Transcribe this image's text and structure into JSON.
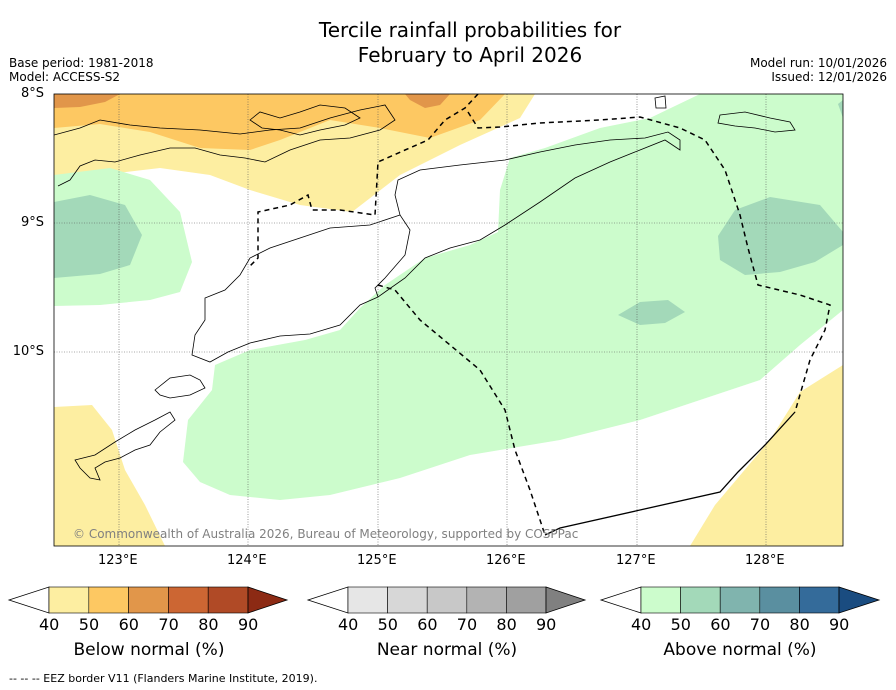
{
  "title_line1": "Tercile rainfall probabilities for",
  "title_line2": "February to April 2026",
  "base_period": "Base period: 1981-2018",
  "model": "Model: ACCESS-S2",
  "model_run": "Model run: 10/01/2026",
  "issued": "Issued: 12/01/2026",
  "latitudes": [
    "8°S",
    "9°S",
    "10°S"
  ],
  "longitudes": [
    "123°E",
    "124°E",
    "125°E",
    "126°E",
    "127°E",
    "128°E"
  ],
  "copyright": "© Commonwealth of Australia 2026, Bureau of Meteorology, supported by COSPPac",
  "colorbars": [
    {
      "label": "Below normal (%)",
      "ticks": [
        "40",
        "50",
        "60",
        "70",
        "80",
        "90"
      ],
      "colors": [
        "#ffffff",
        "#fdeea1",
        "#fdc862",
        "#e1964a",
        "#cc6633",
        "#b04a26",
        "#8c2a14"
      ]
    },
    {
      "label": "Near normal (%)",
      "ticks": [
        "40",
        "50",
        "60",
        "70",
        "80",
        "90"
      ],
      "colors": [
        "#ffffff",
        "#e6e6e6",
        "#d7d7d7",
        "#c8c8c8",
        "#b3b3b3",
        "#a0a0a0",
        "#808080"
      ]
    },
    {
      "label": "Above normal (%)",
      "ticks": [
        "40",
        "50",
        "60",
        "70",
        "80",
        "90"
      ],
      "colors": [
        "#ffffff",
        "#ccfccc",
        "#a3d9b9",
        "#80b4ae",
        "#5a8fa0",
        "#346b9a",
        "#1a4c80"
      ]
    }
  ],
  "footnote": "--  --  -- EEZ border V11 (Flanders Marine Institute, 2019)."
}
